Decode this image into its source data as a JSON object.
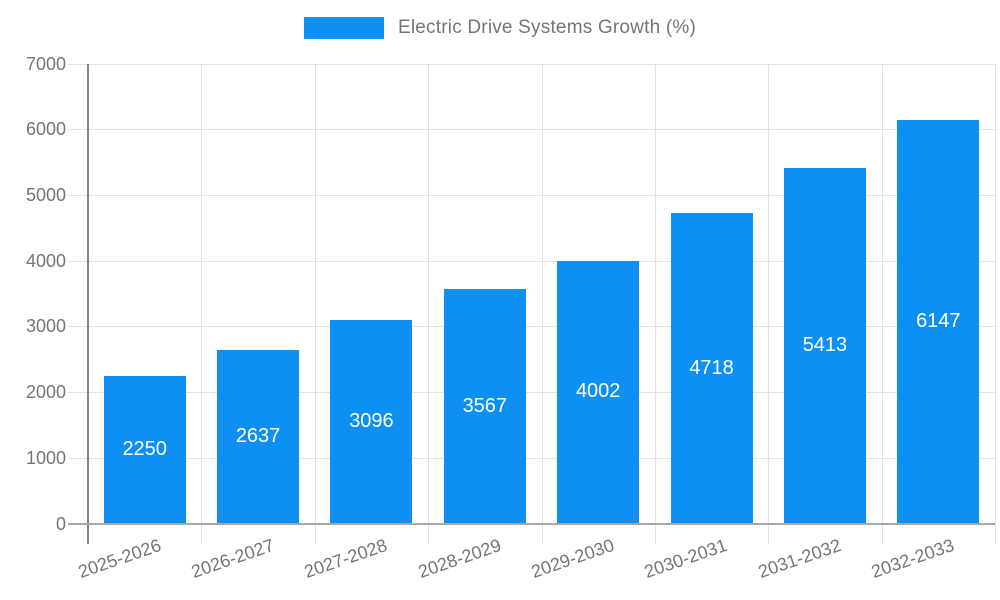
{
  "legend": {
    "label": "Electric Drive Systems Growth (%)"
  },
  "chart_data": {
    "type": "bar",
    "title": "Electric Drive Systems Growth (%)",
    "categories": [
      "2025-2026",
      "2026-2027",
      "2027-2028",
      "2028-2029",
      "2029-2030",
      "2030-2031",
      "2031-2032",
      "2032-2033"
    ],
    "series": [
      {
        "name": "Electric Drive Systems Growth (%)",
        "values": [
          2250,
          2637,
          3096,
          3567,
          4002,
          4718,
          5413,
          6147
        ]
      }
    ],
    "value_labels": [
      "2250",
      "2637",
      "3096",
      "3567",
      "4002",
      "4718",
      "5413",
      "6147"
    ],
    "xlabel": "",
    "ylabel": "",
    "ylim": [
      0,
      7000
    ],
    "yticks": [
      0,
      1000,
      2000,
      3000,
      4000,
      5000,
      6000,
      7000
    ],
    "grid": true,
    "legend_position": "top-center",
    "x_label_rotation_deg": -19,
    "colors": {
      "bar": "#0e90f2",
      "axis_label": "#757575",
      "gridline": "#e3e3e3",
      "y_axis_line": "#858585",
      "x_axis_line": "#a8a8a8",
      "value_label": "#ffffff",
      "background": "#ffffff"
    }
  }
}
